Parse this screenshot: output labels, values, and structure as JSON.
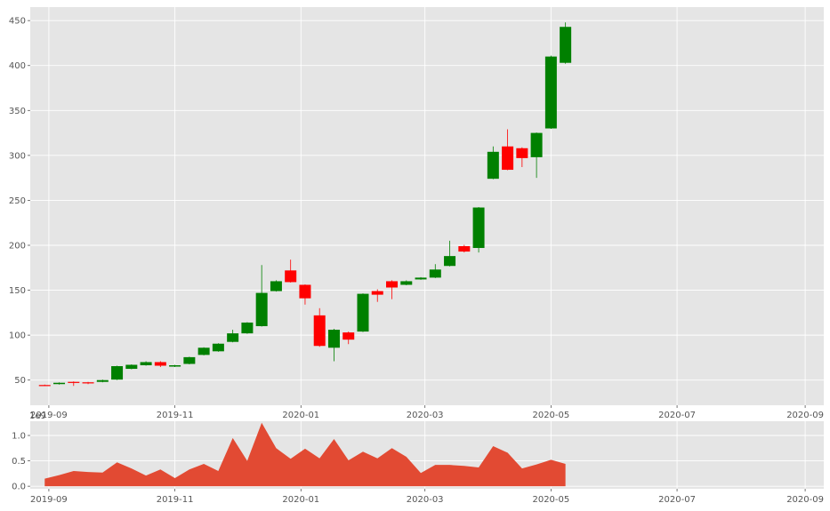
{
  "chart_data": [
    {
      "type": "candlestick",
      "title": "",
      "xlabel": "",
      "ylabel": "",
      "grid": true,
      "xlim": [
        "2019-08-23",
        "2020-09-10"
      ],
      "ylim": [
        22,
        465
      ],
      "y_ticks": [
        50,
        100,
        150,
        200,
        250,
        300,
        350,
        400,
        450
      ],
      "x_ticks": [
        "2019-09",
        "2019-11",
        "2020-01",
        "2020-03",
        "2020-05",
        "2020-07",
        "2020-09"
      ],
      "colors": {
        "up": "#008000",
        "down": "#ff0000",
        "background": "#e5e5e5",
        "grid": "#ffffff"
      },
      "candles": [
        {
          "date": "2019-08-30",
          "open": 44.5,
          "close": 44.0,
          "high": 45.0,
          "low": 43.5
        },
        {
          "date": "2019-09-06",
          "open": 45.5,
          "close": 47.0,
          "high": 47.5,
          "low": 45.0
        },
        {
          "date": "2019-09-13",
          "open": 48.0,
          "close": 47.0,
          "high": 48.5,
          "low": 43.5
        },
        {
          "date": "2019-09-20",
          "open": 47.5,
          "close": 47.0,
          "high": 48.0,
          "low": 45.5
        },
        {
          "date": "2019-09-27",
          "open": 48.0,
          "close": 50.0,
          "high": 50.5,
          "low": 47.5
        },
        {
          "date": "2019-10-04",
          "open": 50.5,
          "close": 65.5,
          "high": 66.0,
          "low": 50.0
        },
        {
          "date": "2019-10-11",
          "open": 62.5,
          "close": 67.0,
          "high": 67.5,
          "low": 62.0
        },
        {
          "date": "2019-10-18",
          "open": 66.5,
          "close": 70.0,
          "high": 71.0,
          "low": 66.0
        },
        {
          "date": "2019-10-25",
          "open": 70.0,
          "close": 66.0,
          "high": 71.0,
          "low": 64.5
        },
        {
          "date": "2019-11-01",
          "open": 65.0,
          "close": 66.5,
          "high": 67.0,
          "low": 64.5
        },
        {
          "date": "2019-11-08",
          "open": 68.0,
          "close": 75.5,
          "high": 76.0,
          "low": 67.5
        },
        {
          "date": "2019-11-15",
          "open": 78.0,
          "close": 86.0,
          "high": 86.5,
          "low": 77.5
        },
        {
          "date": "2019-11-22",
          "open": 82.0,
          "close": 90.5,
          "high": 91.0,
          "low": 81.5
        },
        {
          "date": "2019-11-29",
          "open": 92.5,
          "close": 102.0,
          "high": 106.0,
          "low": 92.0
        },
        {
          "date": "2019-12-06",
          "open": 102.0,
          "close": 114.0,
          "high": 114.5,
          "low": 101.5
        },
        {
          "date": "2019-12-13",
          "open": 110.0,
          "close": 147.0,
          "high": 178.0,
          "low": 109.5
        },
        {
          "date": "2019-12-20",
          "open": 149.0,
          "close": 160.0,
          "high": 161.0,
          "low": 148.5
        },
        {
          "date": "2019-12-27",
          "open": 172.0,
          "close": 159.0,
          "high": 184.0,
          "low": 158.5
        },
        {
          "date": "2020-01-03",
          "open": 156.0,
          "close": 141.0,
          "high": 156.5,
          "low": 134.0
        },
        {
          "date": "2020-01-10",
          "open": 122.0,
          "close": 88.0,
          "high": 130.0,
          "low": 87.0
        },
        {
          "date": "2020-01-17",
          "open": 86.0,
          "close": 106.0,
          "high": 107.0,
          "low": 71.0
        },
        {
          "date": "2020-01-24",
          "open": 103.0,
          "close": 95.0,
          "high": 104.0,
          "low": 90.0
        },
        {
          "date": "2020-01-31",
          "open": 104.0,
          "close": 146.0,
          "high": 146.5,
          "low": 103.5
        },
        {
          "date": "2020-02-07",
          "open": 149.0,
          "close": 145.0,
          "high": 151.0,
          "low": 137.0
        },
        {
          "date": "2020-02-14",
          "open": 160.0,
          "close": 153.0,
          "high": 161.0,
          "low": 140.0
        },
        {
          "date": "2020-02-21",
          "open": 156.0,
          "close": 160.0,
          "high": 161.0,
          "low": 155.5
        },
        {
          "date": "2020-02-28",
          "open": 162.0,
          "close": 164.0,
          "high": 164.5,
          "low": 161.5
        },
        {
          "date": "2020-03-06",
          "open": 164.0,
          "close": 173.0,
          "high": 179.0,
          "low": 163.5
        },
        {
          "date": "2020-03-13",
          "open": 177.0,
          "close": 188.0,
          "high": 205.0,
          "low": 176.5
        },
        {
          "date": "2020-03-20",
          "open": 199.0,
          "close": 193.0,
          "high": 200.5,
          "low": 192.0
        },
        {
          "date": "2020-03-27",
          "open": 197.0,
          "close": 242.0,
          "high": 242.5,
          "low": 192.0
        },
        {
          "date": "2020-04-03",
          "open": 274.0,
          "close": 304.0,
          "high": 310.0,
          "low": 273.5
        },
        {
          "date": "2020-04-10",
          "open": 310.0,
          "close": 284.0,
          "high": 329.0,
          "low": 283.5
        },
        {
          "date": "2020-04-17",
          "open": 308.0,
          "close": 297.0,
          "high": 309.0,
          "low": 287.0
        },
        {
          "date": "2020-04-24",
          "open": 298.0,
          "close": 325.0,
          "high": 325.5,
          "low": 275.0
        },
        {
          "date": "2020-05-01",
          "open": 330.0,
          "close": 410.0,
          "high": 411.0,
          "low": 329.5
        },
        {
          "date": "2020-05-08",
          "open": 403.0,
          "close": 443.0,
          "high": 448.0,
          "low": 402.0
        }
      ]
    },
    {
      "type": "area",
      "title": "",
      "xlabel": "",
      "ylabel": "",
      "grid": true,
      "exponent_label": "1e9",
      "xlim": [
        "2019-08-23",
        "2020-09-10"
      ],
      "ylim": [
        -0.05,
        1.28
      ],
      "y_ticks": [
        0.0,
        0.5,
        1.0
      ],
      "y_tick_labels": [
        "0.0",
        "0.5",
        "1.0"
      ],
      "x_ticks": [
        "2019-09",
        "2019-11",
        "2020-01",
        "2020-03",
        "2020-05",
        "2020-07",
        "2020-09"
      ],
      "colors": {
        "fill": "#e24a33",
        "background": "#e5e5e5",
        "grid": "#ffffff"
      },
      "x": [
        "2019-08-30",
        "2019-09-06",
        "2019-09-13",
        "2019-09-20",
        "2019-09-27",
        "2019-10-04",
        "2019-10-11",
        "2019-10-18",
        "2019-10-25",
        "2019-11-01",
        "2019-11-08",
        "2019-11-15",
        "2019-11-22",
        "2019-11-29",
        "2019-12-06",
        "2019-12-13",
        "2019-12-20",
        "2019-12-27",
        "2020-01-03",
        "2020-01-10",
        "2020-01-17",
        "2020-01-24",
        "2020-01-31",
        "2020-02-07",
        "2020-02-14",
        "2020-02-21",
        "2020-02-28",
        "2020-03-06",
        "2020-03-13",
        "2020-03-20",
        "2020-03-27",
        "2020-04-03",
        "2020-04-10",
        "2020-04-17",
        "2020-04-24",
        "2020-05-01",
        "2020-05-08"
      ],
      "values": [
        0.15,
        0.22,
        0.3,
        0.28,
        0.27,
        0.47,
        0.35,
        0.21,
        0.33,
        0.16,
        0.33,
        0.44,
        0.3,
        0.95,
        0.5,
        1.25,
        0.75,
        0.54,
        0.74,
        0.55,
        0.93,
        0.51,
        0.68,
        0.55,
        0.75,
        0.58,
        0.26,
        0.42,
        0.42,
        0.4,
        0.37,
        0.79,
        0.66,
        0.35,
        0.43,
        0.52,
        0.44
      ]
    }
  ]
}
